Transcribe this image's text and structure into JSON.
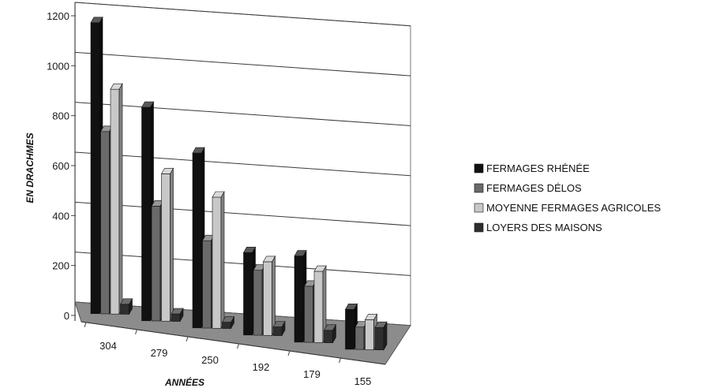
{
  "chart_data": {
    "type": "bar",
    "title": "",
    "xlabel": "ANNÉES",
    "ylabel": "EN DRACHMES",
    "ylim": [
      0,
      1200
    ],
    "yticks": [
      "0",
      "200",
      "400",
      "600",
      "800",
      "1000",
      "1200"
    ],
    "grid": true,
    "legend_position": "right",
    "categories": [
      "304",
      "279",
      "250",
      "192",
      "179",
      "155"
    ],
    "series": [
      {
        "name": "FERMAGES RHÉNÉE",
        "color": "#111111",
        "values": [
          1165,
          855,
          700,
          330,
          345,
          160
        ]
      },
      {
        "name": "FERMAGES DÉLOS",
        "color": "#6a6a6a",
        "values": [
          730,
          460,
          350,
          260,
          225,
          90
        ]
      },
      {
        "name": "MOYENNE FERMAGES AGRICOLES",
        "color": "#c8c8c8",
        "values": [
          900,
          590,
          525,
          295,
          285,
          120
        ]
      },
      {
        "name": "LOYERS DES MAISONS",
        "color": "#2e2e2e",
        "values": [
          40,
          30,
          25,
          35,
          50,
          90
        ]
      }
    ]
  }
}
